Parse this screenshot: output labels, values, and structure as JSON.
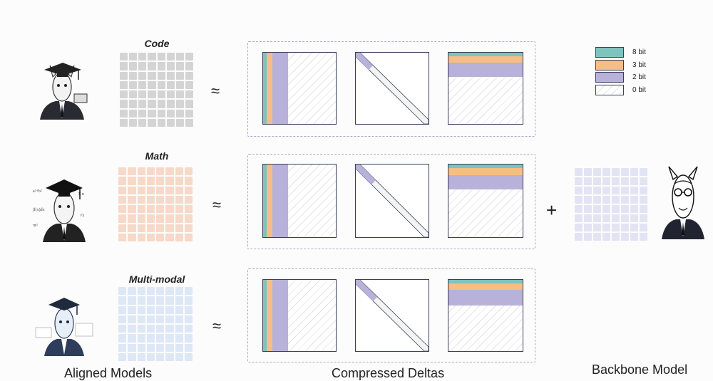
{
  "rows": [
    {
      "id": "code",
      "label": "Code",
      "grid_color": "#d4d4d4",
      "avatar": "llama-graduate-laptop-icon"
    },
    {
      "id": "math",
      "label": "Math",
      "grid_color": "#f6d9c8",
      "avatar": "llama-graduate-formulas-icon"
    },
    {
      "id": "multimodal",
      "label": "Multi-modal",
      "grid_color": "#dde7f6",
      "avatar": "llama-graduate-speech-icon"
    }
  ],
  "approx_symbol": "≈",
  "plus_symbol": "+",
  "colors": {
    "bit8": "#7fc3bf",
    "bit3": "#f6bd84",
    "bit2": "#b8b1d9",
    "backbone_grid": "#e2e3f3"
  },
  "legend": [
    {
      "key": "bit8",
      "label": "8 bit"
    },
    {
      "key": "bit3",
      "label": "3 bit"
    },
    {
      "key": "bit2",
      "label": "2 bit"
    },
    {
      "key": "bit0",
      "label": "0 bit"
    }
  ],
  "labels": {
    "aligned_models": "Aligned Models",
    "compressed_deltas": "Compressed Deltas",
    "backbone_model": "Backbone Model"
  }
}
